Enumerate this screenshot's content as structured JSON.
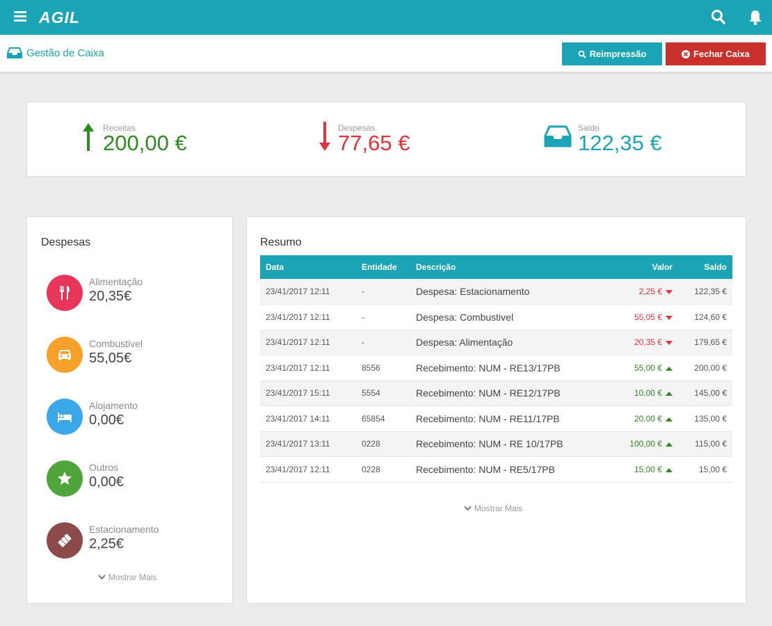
{
  "app": {
    "brand": "AGIL"
  },
  "header": {
    "breadcrumb": "Gestão de Caixa",
    "reprint_label": "Reimpressão",
    "close_label": "Fechar Caixa"
  },
  "summary": {
    "income_label": "Receitas",
    "income_value": "200,00 €",
    "expense_label": "Despesas",
    "expense_value": "77,65 €",
    "balance_label": "Saldo",
    "balance_value": "122,35 €"
  },
  "expenses": {
    "title": "Despesas",
    "items": [
      {
        "name": "Alimentação",
        "value": "20,35€",
        "color": "#e8355a",
        "icon": "utensils-icon"
      },
      {
        "name": "Combustivel",
        "value": "55,05€",
        "color": "#f5a12a",
        "icon": "car-icon"
      },
      {
        "name": "Alojamento",
        "value": "0,00€",
        "color": "#3aa7e8",
        "icon": "bed-icon"
      },
      {
        "name": "Outros",
        "value": "0,00€",
        "color": "#4fa53a",
        "icon": "star-icon"
      },
      {
        "name": "Estacionamento",
        "value": "2,25€",
        "color": "#8c4a4a",
        "icon": "ticket-icon"
      }
    ],
    "more_label": "Mostrar Mais"
  },
  "resumo": {
    "title": "Resumo",
    "columns": [
      "Data",
      "Entidade",
      "Descrição",
      "Valor",
      "Saldo"
    ],
    "rows": [
      {
        "date": "23/41/2017 12:11",
        "entity": "-",
        "desc": "Despesa: Estacionamento",
        "value": "2,25 €",
        "type": "out",
        "balance": "122,35 €"
      },
      {
        "date": "23/41/2017 12:11",
        "entity": "-",
        "desc": "Despesa: Combustivel",
        "value": "55,05 €",
        "type": "out",
        "balance": "124,60 €"
      },
      {
        "date": "23/41/2017 12:11",
        "entity": "-",
        "desc": "Despesa: Alimentação",
        "value": "20,35 €",
        "type": "out",
        "balance": "179,65 €"
      },
      {
        "date": "23/41/2017 12:11",
        "entity": "8556",
        "desc": "Recebimento: NUM - RE13/17PB",
        "value": "55,00 €",
        "type": "in",
        "balance": "200,00 €"
      },
      {
        "date": "23/41/2017 15:11",
        "entity": "5554",
        "desc": "Recebimento: NUM - RE12/17PB",
        "value": "10,00 €",
        "type": "in",
        "balance": "145,00 €"
      },
      {
        "date": "23/41/2017 14:11",
        "entity": "65854",
        "desc": "Recebimento: NUM - RE11/17PB",
        "value": "20,00 €",
        "type": "in",
        "balance": "135,00 €"
      },
      {
        "date": "23/41/2017 13:11",
        "entity": "0228",
        "desc": "Recebimento: NUM - RE 10/17PB",
        "value": "100,00 €",
        "type": "in",
        "balance": "115,00 €"
      },
      {
        "date": "23/41/2017 12:11",
        "entity": "0228",
        "desc": "Recebimento: NUM - RE5/17PB",
        "value": "15,00 €",
        "type": "in",
        "balance": "15,00 €"
      }
    ],
    "more_label": "Mostrar Mais"
  },
  "colors": {
    "accent": "#1ba3b6",
    "danger": "#c9302c",
    "income": "#2e8b1f",
    "expense": "#e3323a"
  }
}
